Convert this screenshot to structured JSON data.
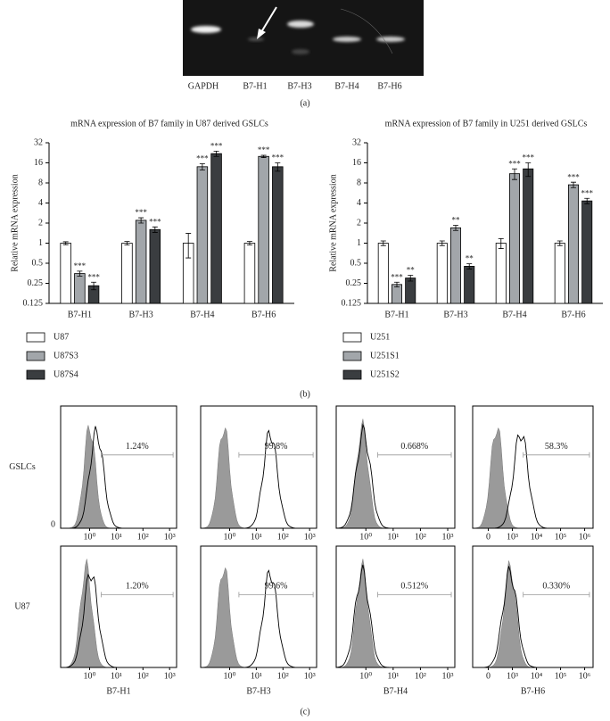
{
  "gel": {
    "lanes": [
      "GAPDH",
      "B7-H1",
      "B7-H3",
      "B7-H4",
      "B7-H6"
    ],
    "panel_label": "(a)"
  },
  "chart_data": [
    {
      "type": "bar",
      "title": "mRNA expression of B7 family in U87 derived GSLCs",
      "ylabel": "Relative mRNA expression",
      "categories": [
        "B7-H1",
        "B7-H3",
        "B7-H4",
        "B7-H6"
      ],
      "log_scale": "y",
      "log_base": 2,
      "ylim": [
        0.125,
        32
      ],
      "yticks": [
        0.125,
        0.25,
        0.5,
        1,
        2,
        4,
        8,
        16,
        32
      ],
      "series": [
        {
          "name": "U87",
          "color": "#ffffff",
          "values": [
            1,
            1,
            1,
            1
          ],
          "errors": [
            0.05,
            0.06,
            0.4,
            0.06
          ]
        },
        {
          "name": "U87S3",
          "color": "#a2a6aa",
          "values": [
            0.35,
            2.2,
            14,
            20
          ],
          "errors": [
            0.03,
            0.2,
            1.5,
            0.8
          ],
          "significance": [
            "***",
            "***",
            "***",
            "***"
          ]
        },
        {
          "name": "U87S4",
          "color": "#3a3d40",
          "values": [
            0.23,
            1.6,
            22,
            14
          ],
          "errors": [
            0.03,
            0.15,
            2,
            2
          ],
          "significance": [
            "***",
            "***",
            "***",
            "***"
          ]
        }
      ]
    },
    {
      "type": "bar",
      "title": "mRNA expression of B7 family in U251 derived GSLCs",
      "ylabel": "Relative mRNA expression",
      "categories": [
        "B7-H1",
        "B7-H3",
        "B7-H4",
        "B7-H6"
      ],
      "log_scale": "y",
      "log_base": 2,
      "ylim": [
        0.125,
        32
      ],
      "yticks": [
        0.125,
        0.25,
        0.5,
        1,
        2,
        4,
        8,
        16,
        32
      ],
      "series": [
        {
          "name": "U251",
          "color": "#ffffff",
          "values": [
            1,
            1,
            1,
            1
          ],
          "errors": [
            0.08,
            0.08,
            0.17,
            0.08
          ]
        },
        {
          "name": "U251S1",
          "color": "#a2a6aa",
          "values": [
            0.24,
            1.7,
            11,
            7.5
          ],
          "errors": [
            0.02,
            0.15,
            2,
            0.7
          ],
          "significance": [
            "***",
            "**",
            "***",
            "***"
          ]
        },
        {
          "name": "U251S2",
          "color": "#3a3d40",
          "values": [
            0.3,
            0.45,
            13,
            4.3
          ],
          "errors": [
            0.03,
            0.04,
            3,
            0.4
          ],
          "significance": [
            "**",
            "**",
            "***",
            "***"
          ]
        }
      ]
    }
  ],
  "chart_panel_label": "(b)",
  "flow": {
    "row_labels": [
      "GSLCs",
      "U87"
    ],
    "column_labels": [
      "B7-H1",
      "B7-H3",
      "B7-H4",
      "B7-H6"
    ],
    "x_tick_labels": [
      [
        "10⁰",
        "10¹",
        "10²",
        "10³"
      ],
      [
        "10⁰",
        "10¹",
        "10²",
        "10³"
      ],
      [
        "10⁰",
        "10¹",
        "10²",
        "10³"
      ],
      [
        "0",
        "10³",
        "10⁴",
        "10⁵",
        "10⁶"
      ]
    ],
    "y_zero_label": "0",
    "percentages": [
      [
        "1.24%",
        "99.8%",
        "0.668%",
        "58.3%"
      ],
      [
        "1.20%",
        "99.6%",
        "0.512%",
        "0.330%"
      ]
    ],
    "panel_label": "(c)"
  }
}
